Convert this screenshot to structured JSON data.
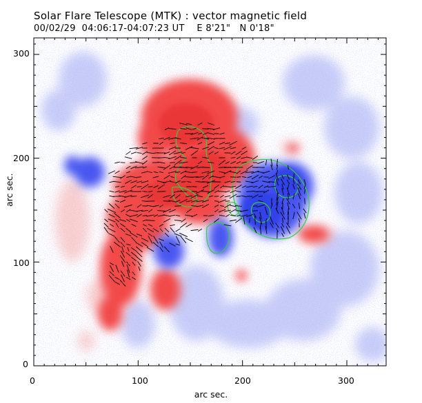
{
  "figure": {
    "title": "Solar Flare Telescope (MTK) : vector magnetic field",
    "subtitle": "00/02/29  04:06:17-04:07:23 UT    E 8'21\"   N 0'18\"",
    "xlabel": "arc sec.",
    "ylabel": "arc sec."
  },
  "axes": {
    "x_ticks": [
      "0",
      "100",
      "200",
      "300"
    ],
    "y_ticks": [
      "0",
      "100",
      "200",
      "300"
    ],
    "xlim": [
      0,
      340
    ],
    "ylim": [
      0,
      315
    ]
  },
  "colors": {
    "positive_polarity": "#f24a4a",
    "negative_polarity": "#4a56f0",
    "contour": "#2fcf3f",
    "vector": "#000000",
    "background": "#ffffff"
  }
}
